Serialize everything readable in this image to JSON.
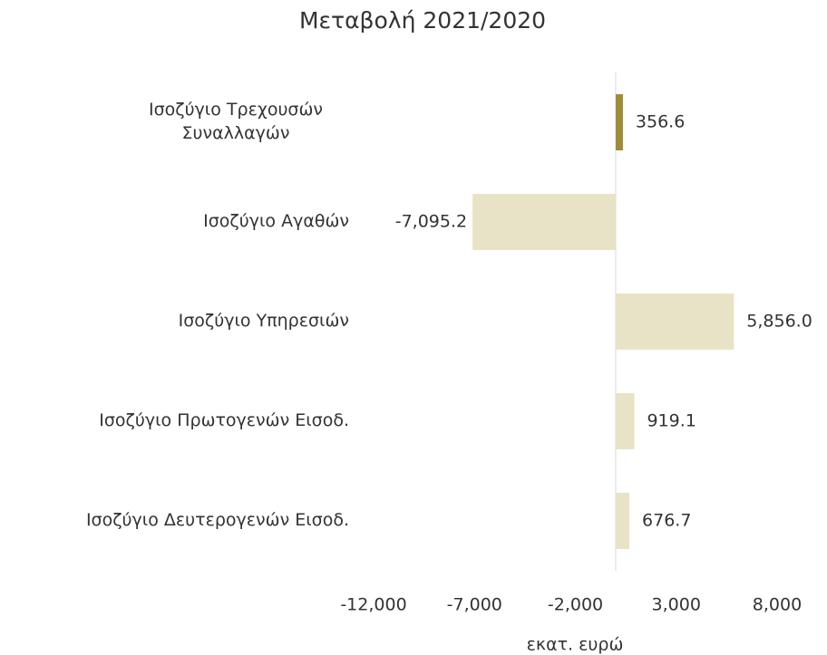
{
  "chart_data": {
    "type": "barh",
    "title": "Μεταβολή 2021/2020",
    "categories": [
      "Ισοζύγιο Τρεχουσών Συναλλαγών",
      "Ισοζύγιο Αγαθών",
      "Ισοζύγιο Υπηρεσιών",
      "Ισοζύγιο Πρωτογενών Εισοδ.",
      "Ισοζύγιο Δευτερογενών Εισοδ."
    ],
    "values": [
      356.6,
      -7095.2,
      5856.0,
      919.1,
      676.7
    ],
    "value_labels": [
      "356.6",
      "-7,095.2",
      "5,856.0",
      "919.1",
      "676.7"
    ],
    "colors": [
      "#a08b37",
      "#e8e3c6",
      "#e8e3c6",
      "#e8e3c6",
      "#e8e3c6"
    ],
    "xlabel": "εκατ. ευρώ",
    "xlim": [
      -12000,
      8000
    ],
    "xticks": [
      {
        "value": -12000,
        "label": "-12,000"
      },
      {
        "value": -7000,
        "label": "-7,000"
      },
      {
        "value": -2000,
        "label": "-2,000"
      },
      {
        "value": 3000,
        "label": "3,000"
      },
      {
        "value": 8000,
        "label": "8,000"
      }
    ],
    "grid": false
  }
}
